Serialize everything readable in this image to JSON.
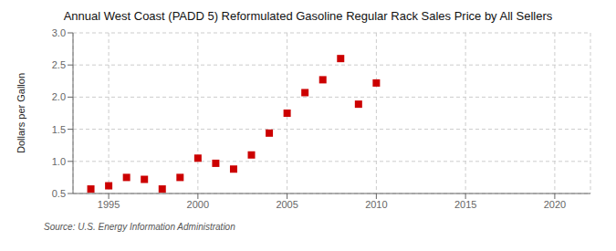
{
  "chart_data": {
    "type": "scatter",
    "title": "Annual West Coast (PADD 5) Reformulated Gasoline Regular Rack Sales Price by All Sellers",
    "ylabel": "Dollars per Gallon",
    "annotation": "Source: U.S. Energy Information Administration",
    "x": [
      1994,
      1995,
      1996,
      1997,
      1998,
      1999,
      2000,
      2001,
      2002,
      2003,
      2004,
      2005,
      2006,
      2007,
      2008,
      2009,
      2010
    ],
    "values": [
      0.57,
      0.62,
      0.75,
      0.72,
      0.57,
      0.75,
      1.05,
      0.97,
      0.88,
      1.1,
      1.44,
      1.75,
      2.07,
      2.27,
      2.6,
      1.89,
      2.22
    ],
    "color": "#cc0000",
    "marker": "square",
    "xlim": [
      1993,
      2022
    ],
    "ylim": [
      0.5,
      3.0
    ],
    "xticks": [
      1995,
      2000,
      2005,
      2010,
      2015,
      2020
    ],
    "yticks": [
      0.5,
      {
        "value": 1,
        "label": "1.0"
      },
      1.5,
      {
        "value": 2,
        "label": "2.0"
      },
      2.5,
      {
        "value": 3,
        "label": "3.0"
      }
    ],
    "grid": true
  }
}
